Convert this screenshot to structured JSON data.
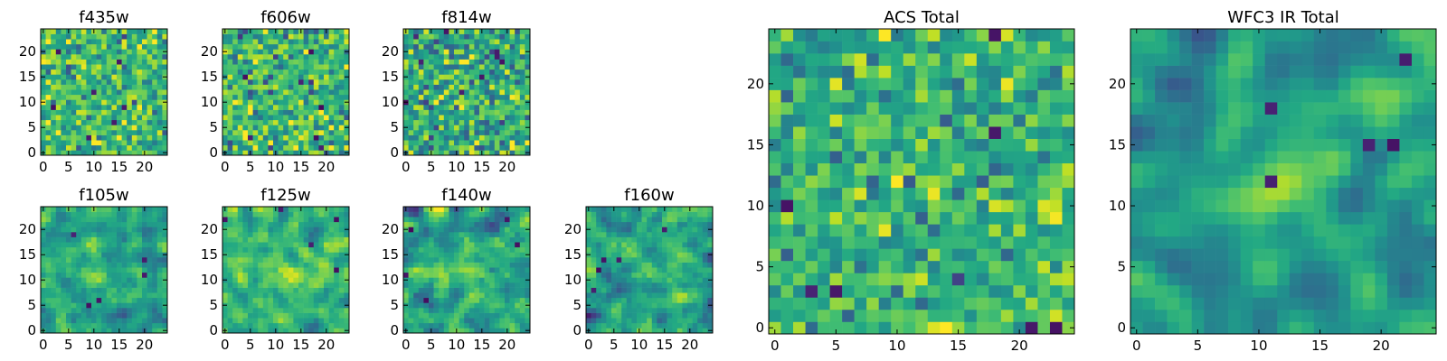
{
  "chart_data": {
    "type": "heatmap",
    "colormap": "viridis",
    "grid": false,
    "panels": [
      {
        "id": "f435w",
        "title": "f435w",
        "xticks": [
          0,
          5,
          10,
          15,
          20
        ],
        "yticks": [
          0,
          5,
          10,
          15,
          20
        ],
        "xlim": [
          -0.5,
          24.5
        ],
        "ylim": [
          -0.5,
          24.5
        ],
        "description": "25x25 noisy cutout, mostly green/yellow, few dark pixels"
      },
      {
        "id": "f606w",
        "title": "f606w",
        "xticks": [
          0,
          5,
          10,
          15,
          20
        ],
        "yticks": [
          0,
          5,
          10,
          15,
          20
        ],
        "xlim": [
          -0.5,
          24.5
        ],
        "ylim": [
          -0.5,
          24.5
        ],
        "description": "25x25 noisy cutout"
      },
      {
        "id": "f814w",
        "title": "f814w",
        "xticks": [
          0,
          5,
          10,
          15,
          20
        ],
        "yticks": [
          0,
          5,
          10,
          15,
          20
        ],
        "xlim": [
          -0.5,
          24.5
        ],
        "ylim": [
          -0.5,
          24.5
        ],
        "description": "25x25 noisy cutout"
      },
      {
        "id": "f105w",
        "title": "f105w",
        "xticks": [
          0,
          5,
          10,
          15,
          20
        ],
        "yticks": [
          0,
          5,
          10,
          15,
          20
        ],
        "xlim": [
          -0.5,
          24.5
        ],
        "ylim": [
          -0.5,
          24.5
        ],
        "description": "25x25 smoother cutout with bright blob near center"
      },
      {
        "id": "f125w",
        "title": "f125w",
        "xticks": [
          0,
          5,
          10,
          15,
          20
        ],
        "yticks": [
          0,
          5,
          10,
          15,
          20
        ],
        "xlim": [
          -0.5,
          24.5
        ],
        "ylim": [
          -0.5,
          24.5
        ],
        "description": "25x25 smoother cutout"
      },
      {
        "id": "f140w",
        "title": "f140w",
        "xticks": [
          0,
          5,
          10,
          15,
          20
        ],
        "yticks": [
          0,
          5,
          10,
          15,
          20
        ],
        "xlim": [
          -0.5,
          24.5
        ],
        "ylim": [
          -0.5,
          24.5
        ],
        "description": "25x25 smoother cutout"
      },
      {
        "id": "f160w",
        "title": "f160w",
        "xticks": [
          0,
          5,
          10,
          15,
          20
        ],
        "yticks": [
          0,
          5,
          10,
          15,
          20
        ],
        "xlim": [
          -0.5,
          24.5
        ],
        "ylim": [
          -0.5,
          24.5
        ],
        "description": "25x25 smoother cutout"
      },
      {
        "id": "acs_total",
        "title": "ACS Total",
        "xticks": [
          0,
          5,
          10,
          15,
          20
        ],
        "yticks": [
          0,
          5,
          10,
          15,
          20
        ],
        "xlim": [
          -0.5,
          24.5
        ],
        "ylim": [
          -0.5,
          24.5
        ],
        "description": "25x25 noisy sum of ACS bands"
      },
      {
        "id": "wfc3_ir_total",
        "title": "WFC3 IR Total",
        "xticks": [
          0,
          5,
          10,
          15,
          20
        ],
        "yticks": [
          0,
          5,
          10,
          15,
          20
        ],
        "xlim": [
          -0.5,
          24.5
        ],
        "ylim": [
          -0.5,
          24.5
        ],
        "description": "25x25 smooth sum of IR bands, bright source near (12,12)"
      }
    ]
  }
}
